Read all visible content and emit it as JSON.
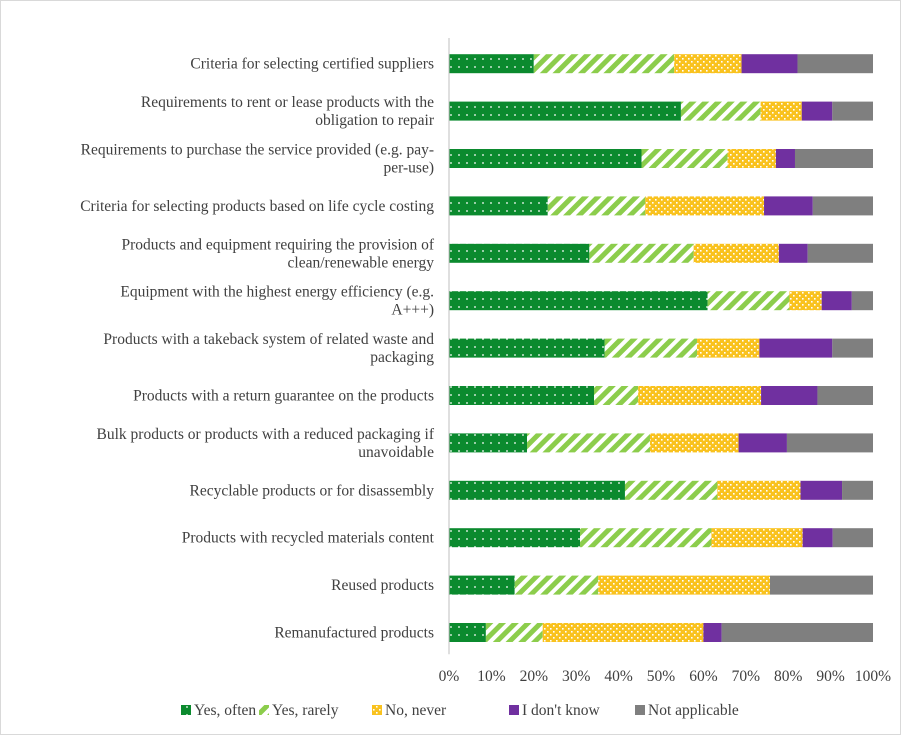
{
  "chart_data": {
    "type": "bar",
    "orientation": "horizontal",
    "stacked": true,
    "percent": true,
    "xlim": [
      0,
      100
    ],
    "x_ticks": [
      "0%",
      "10%",
      "20%",
      "30%",
      "40%",
      "50%",
      "60%",
      "70%",
      "80%",
      "90%",
      "100%"
    ],
    "grid": false,
    "legend_position": "bottom",
    "categories": [
      [
        "Criteria for selecting certified suppliers"
      ],
      [
        "Requirements to rent or lease products with the",
        "obligation to repair"
      ],
      [
        "Requirements to purchase the service provided (e.g. pay-",
        "per-use)"
      ],
      [
        "Criteria for selecting products based on life cycle costing"
      ],
      [
        "Products and equipment requiring the provision of",
        "clean/renewable energy"
      ],
      [
        "Equipment with the highest energy efficiency (e.g.",
        "A+++)"
      ],
      [
        "Products with a takeback system of related waste and",
        "packaging"
      ],
      [
        "Products with a return guarantee on the products"
      ],
      [
        "Bulk products or products with a reduced packaging if",
        "unavoidable"
      ],
      [
        "Recyclable products or for disassembly"
      ],
      [
        "Products with recycled materials content"
      ],
      [
        "Reused products"
      ],
      [
        "Remanufactured products"
      ]
    ],
    "series": [
      {
        "name": "Yes, often",
        "color": "#0b8a2e",
        "pattern": "dots",
        "values": [
          20.0,
          54.7,
          45.4,
          23.3,
          33.1,
          61.0,
          36.7,
          34.2,
          18.4,
          41.5,
          30.9,
          15.5,
          8.7
        ]
      },
      {
        "name": "Yes, rarely",
        "color": "#8ccd4c",
        "pattern": "diagonal-stripes",
        "values": [
          33.1,
          18.8,
          20.3,
          23.0,
          24.6,
          19.3,
          21.8,
          10.4,
          29.0,
          21.8,
          31.0,
          19.7,
          13.4
        ]
      },
      {
        "name": "No, never",
        "color": "#f9c21e",
        "pattern": "checker",
        "values": [
          15.9,
          9.7,
          11.4,
          28.0,
          20.1,
          7.6,
          14.7,
          29.0,
          20.9,
          19.6,
          21.5,
          40.5,
          37.9
        ]
      },
      {
        "name": "I don't know",
        "color": "#7030a0",
        "pattern": "solid",
        "values": [
          13.2,
          7.2,
          4.5,
          11.5,
          6.8,
          7.1,
          17.2,
          13.3,
          11.4,
          9.8,
          7.1,
          0.0,
          4.3
        ]
      },
      {
        "name": "Not applicable",
        "color": "#7f7f7f",
        "pattern": "solid",
        "values": [
          17.8,
          9.6,
          18.4,
          14.2,
          15.4,
          5.0,
          9.6,
          13.1,
          20.3,
          7.3,
          9.5,
          24.3,
          35.7
        ]
      }
    ]
  }
}
